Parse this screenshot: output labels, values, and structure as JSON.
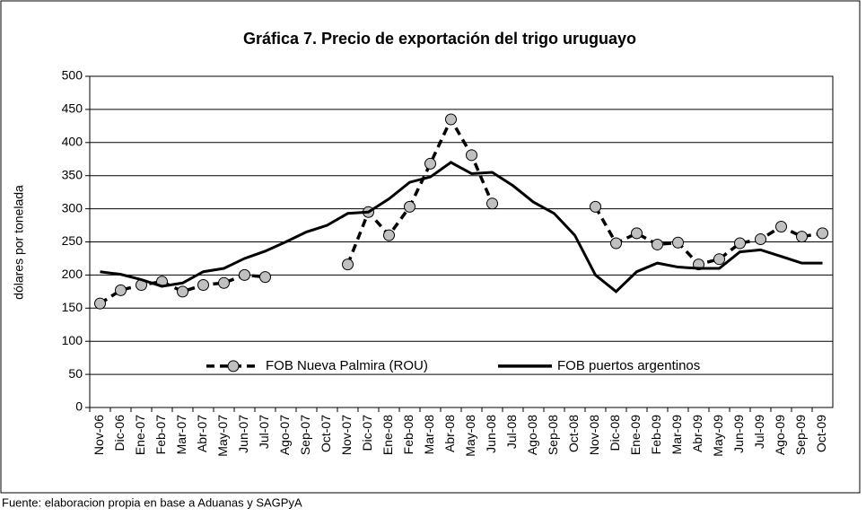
{
  "chart_data": {
    "type": "line",
    "title": "Gráfica 7. Precio de exportación del trigo uruguayo",
    "ylabel": "dólares por tonelada",
    "source": "Fuente: elaboracion propia en base a Aduanas y SAGPyA",
    "categories": [
      "Nov-06",
      "Dic-06",
      "Ene-07",
      "Feb-07",
      "Mar-07",
      "Abr-07",
      "May-07",
      "Jun-07",
      "Jul-07",
      "Ago-07",
      "Sep-07",
      "Oct-07",
      "Nov-07",
      "Dic-07",
      "Ene-08",
      "Feb-08",
      "Mar-08",
      "Abr-08",
      "May-08",
      "Jun-08",
      "Jul-08",
      "Ago-08",
      "Sep-08",
      "Oct-08",
      "Nov-08",
      "Dic-08",
      "Ene-09",
      "Feb-09",
      "Mar-09",
      "Abr-09",
      "May-09",
      "Jun-09",
      "Jul-09",
      "Ago-09",
      "Sep-09",
      "Oct-09"
    ],
    "series": [
      {
        "name": "FOB Nueva Palmira (ROU)",
        "color": "#000000",
        "marker_color": "#c0c0c0",
        "dashed": true,
        "values": [
          157,
          177,
          185,
          190,
          175,
          185,
          188,
          200,
          197,
          null,
          null,
          null,
          216,
          295,
          260,
          303,
          368,
          435,
          381,
          308,
          null,
          null,
          null,
          null,
          303,
          248,
          263,
          246,
          249,
          216,
          224,
          248,
          254,
          273,
          258,
          263
        ]
      },
      {
        "name": "FOB puertos argentinos",
        "color": "#000000",
        "dashed": false,
        "values": [
          205,
          201,
          193,
          183,
          188,
          205,
          210,
          225,
          236,
          250,
          265,
          275,
          293,
          295,
          315,
          340,
          348,
          370,
          353,
          355,
          335,
          310,
          293,
          260,
          200,
          175,
          205,
          218,
          212,
          210,
          210,
          235,
          238,
          228,
          218,
          218
        ]
      }
    ],
    "ylim": [
      0,
      500
    ],
    "yticks": [
      0,
      50,
      100,
      150,
      200,
      250,
      300,
      350,
      400,
      450,
      500
    ],
    "grid": true,
    "legend": "lower center"
  }
}
